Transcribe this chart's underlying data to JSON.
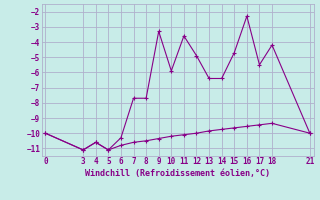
{
  "xlabel": "Windchill (Refroidissement éolien,°C)",
  "bg_color": "#c8ece8",
  "grid_color": "#b0b0cc",
  "line_color": "#880088",
  "line1_x": [
    0,
    3,
    4,
    5,
    6,
    7,
    8,
    9,
    10,
    11,
    12,
    13,
    14,
    15,
    16,
    17,
    18,
    21
  ],
  "line1_y": [
    -10.0,
    -11.1,
    -10.6,
    -11.1,
    -10.3,
    -7.7,
    -7.7,
    -3.3,
    -5.9,
    -3.6,
    -4.9,
    -6.4,
    -6.4,
    -4.7,
    -2.3,
    -5.5,
    -4.2,
    -10.0
  ],
  "line2_x": [
    0,
    3,
    4,
    5,
    6,
    7,
    8,
    9,
    10,
    11,
    12,
    13,
    14,
    15,
    16,
    17,
    18,
    21
  ],
  "line2_y": [
    -10.0,
    -11.1,
    -10.6,
    -11.1,
    -10.8,
    -10.6,
    -10.5,
    -10.35,
    -10.2,
    -10.1,
    -10.0,
    -9.85,
    -9.75,
    -9.65,
    -9.55,
    -9.45,
    -9.35,
    -10.0
  ],
  "xlim": [
    -0.3,
    21.3
  ],
  "ylim": [
    -11.5,
    -1.5
  ],
  "yticks": [
    -2,
    -3,
    -4,
    -5,
    -6,
    -7,
    -8,
    -9,
    -10,
    -11
  ],
  "xticks": [
    0,
    3,
    4,
    5,
    6,
    7,
    8,
    9,
    10,
    11,
    12,
    13,
    14,
    15,
    16,
    17,
    18,
    21
  ]
}
